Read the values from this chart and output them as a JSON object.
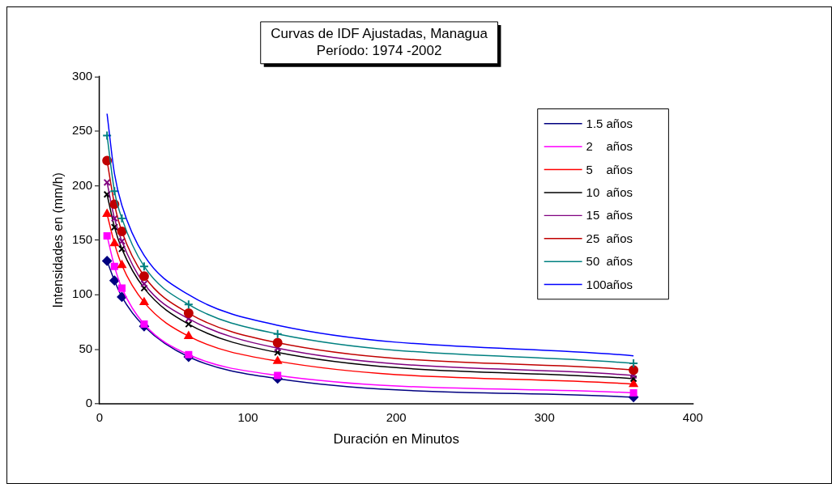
{
  "chart_data": {
    "type": "line",
    "title": "Curvas de IDF Ajustadas, Managua\nPeríodo: 1974 -2002",
    "xlabel": "Duración en Minutos",
    "ylabel": "Intensidades en (mm/h)",
    "x": [
      5,
      10,
      15,
      30,
      60,
      120,
      360
    ],
    "series": [
      {
        "name": "1.5 años",
        "color": "#000080",
        "marker": "diamond",
        "values": [
          131,
          113,
          98,
          71,
          43,
          23,
          6
        ]
      },
      {
        "name": "2    años",
        "color": "#ff00ff",
        "marker": "square",
        "values": [
          154,
          126,
          106,
          73,
          45,
          26,
          10
        ]
      },
      {
        "name": "5    años",
        "color": "#ff0000",
        "marker": "triangle",
        "values": [
          174,
          147,
          127,
          93,
          62,
          39,
          18
        ]
      },
      {
        "name": "10  años",
        "color": "#000000",
        "marker": "cross",
        "values": [
          192,
          162,
          142,
          106,
          73,
          47,
          23
        ]
      },
      {
        "name": "15  años",
        "color": "#800080",
        "marker": "cross",
        "values": [
          203,
          170,
          149,
          110,
          78,
          51,
          26
        ]
      },
      {
        "name": "25  años",
        "color": "#c00000",
        "marker": "circle",
        "values": [
          223,
          183,
          158,
          117,
          83,
          56,
          31
        ]
      },
      {
        "name": "50  años",
        "color": "#008080",
        "marker": "plus",
        "values": [
          246,
          195,
          170,
          126,
          91,
          64,
          37
        ]
      },
      {
        "name": "100años",
        "color": "#0000ff",
        "marker": "none",
        "values": [
          266,
          211,
          182,
          136,
          100,
          72,
          44
        ]
      }
    ],
    "xlim": [
      0,
      400
    ],
    "xticks": [
      0,
      100,
      200,
      300,
      400
    ],
    "ylim": [
      0,
      300
    ],
    "yticks": [
      0,
      50,
      100,
      150,
      200,
      250,
      300
    ],
    "grid": false,
    "legend": "top right"
  }
}
